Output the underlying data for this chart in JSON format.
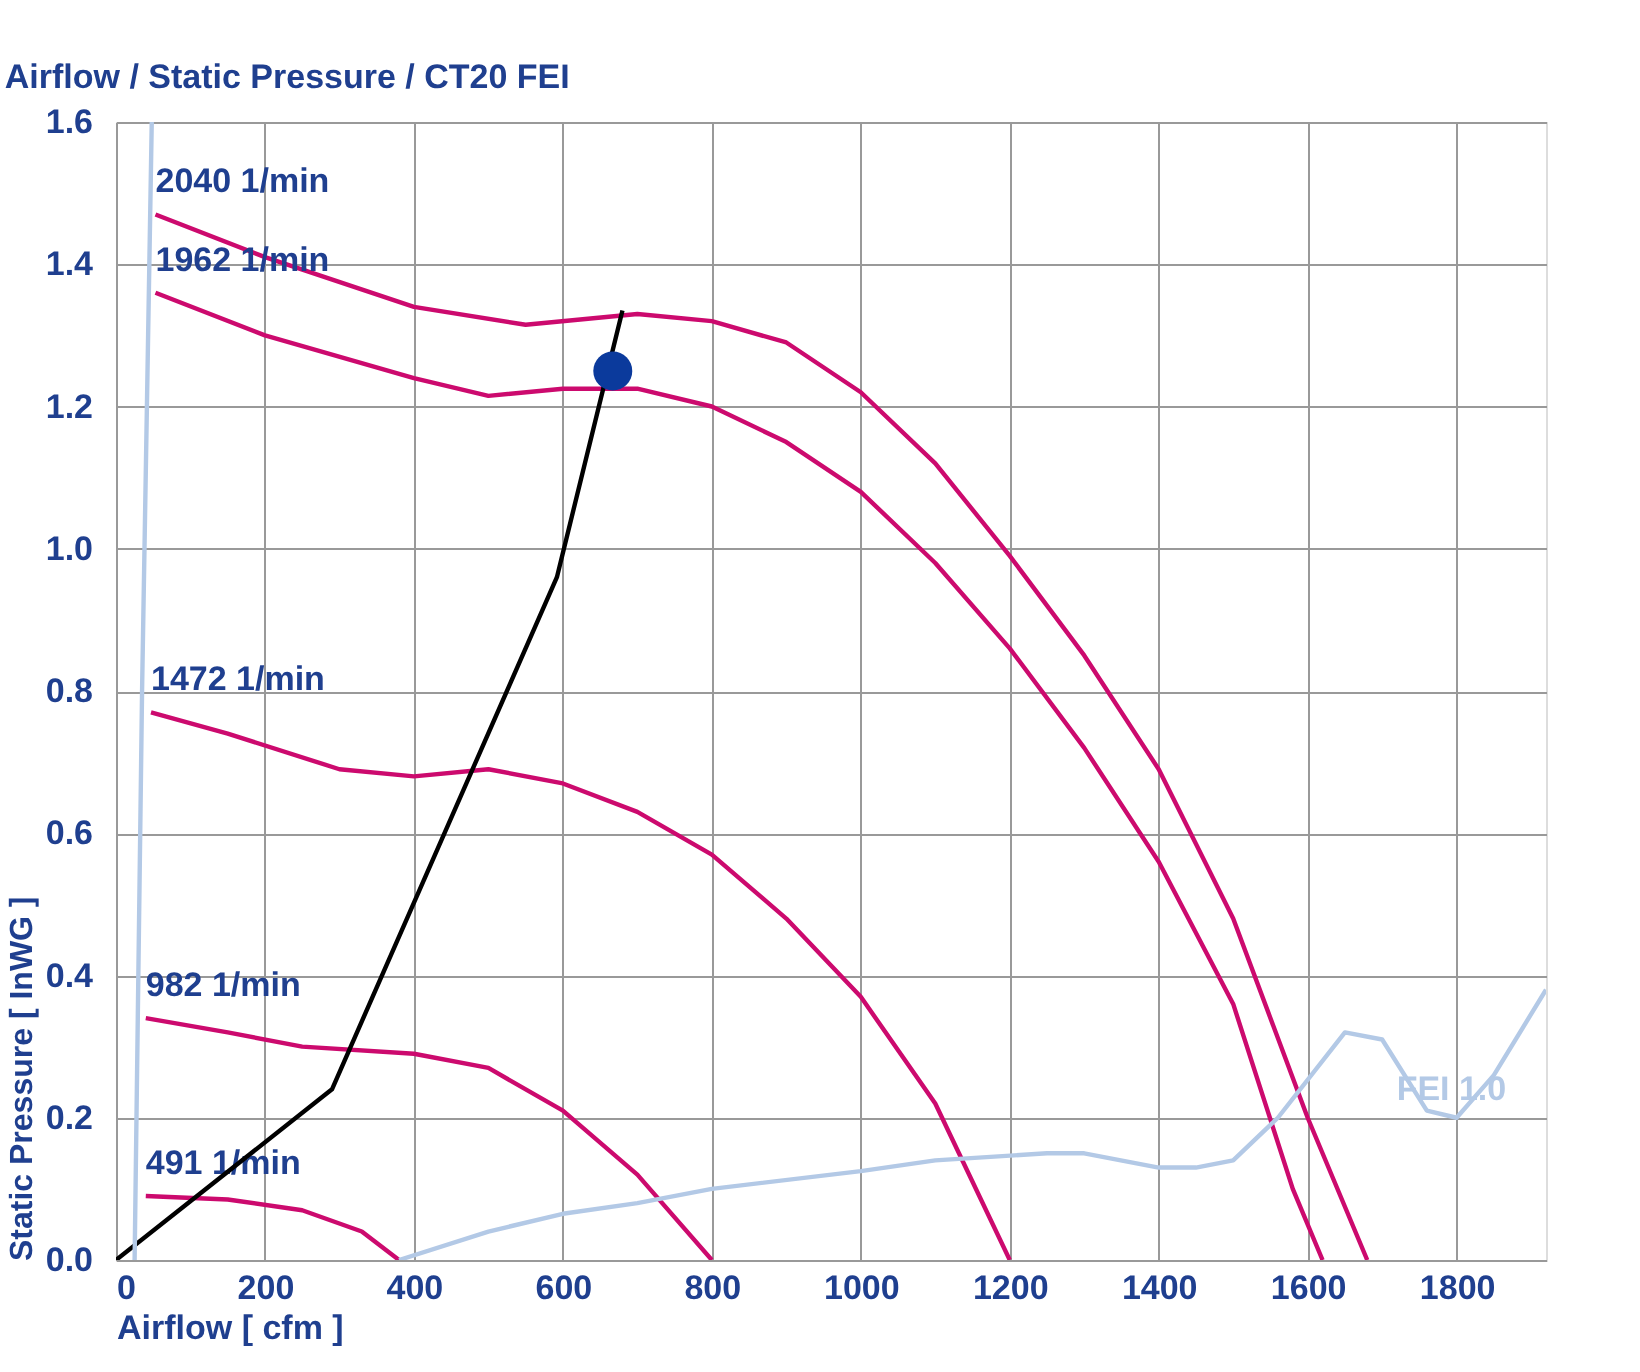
{
  "chart_data": {
    "type": "line",
    "title": "Airflow / Static Pressure / CT20 FEI",
    "xlabel": "Airflow [ cfm ]",
    "ylabel": "Static Pressure [ InWG ]",
    "xlim": [
      0,
      1920
    ],
    "ylim": [
      0,
      1.6
    ],
    "xticks": [
      0,
      200,
      400,
      600,
      800,
      1000,
      1200,
      1400,
      1600,
      1800
    ],
    "yticks": [
      {
        "value": 0,
        "label": "0.0"
      },
      0.2,
      0.4,
      0.6,
      0.8,
      {
        "value": 1,
        "label": "1.0"
      },
      1.2,
      1.4,
      1.6
    ],
    "grid": true,
    "series": [
      {
        "name": "2040 1/min",
        "color": "#cc0a6e",
        "x": [
          53,
          200,
          400,
          550,
          700,
          800,
          900,
          1000,
          1100,
          1200,
          1300,
          1400,
          1500,
          1600,
          1680
        ],
        "values": [
          1.47,
          1.41,
          1.34,
          1.315,
          1.33,
          1.32,
          1.29,
          1.22,
          1.12,
          0.99,
          0.85,
          0.69,
          0.48,
          0.2,
          0
        ]
      },
      {
        "name": "1962 1/min",
        "color": "#cc0a6e",
        "x": [
          53,
          200,
          400,
          500,
          600,
          700,
          800,
          900,
          1000,
          1100,
          1200,
          1300,
          1400,
          1500,
          1580,
          1620
        ],
        "values": [
          1.36,
          1.3,
          1.24,
          1.215,
          1.225,
          1.225,
          1.2,
          1.15,
          1.08,
          0.98,
          0.86,
          0.72,
          0.56,
          0.36,
          0.1,
          0
        ]
      },
      {
        "name": "1472 1/min",
        "color": "#cc0a6e",
        "x": [
          47,
          150,
          300,
          400,
          500,
          600,
          700,
          800,
          900,
          1000,
          1100,
          1200
        ],
        "values": [
          0.77,
          0.74,
          0.69,
          0.68,
          0.69,
          0.67,
          0.63,
          0.57,
          0.48,
          0.37,
          0.22,
          0
        ]
      },
      {
        "name": "982 1/min",
        "color": "#cc0a6e",
        "x": [
          40,
          150,
          250,
          400,
          500,
          600,
          700,
          800
        ],
        "values": [
          0.34,
          0.32,
          0.3,
          0.29,
          0.27,
          0.21,
          0.12,
          0
        ]
      },
      {
        "name": "491 1/min",
        "color": "#cc0a6e",
        "x": [
          40,
          150,
          250,
          330,
          380
        ],
        "values": [
          0.09,
          0.085,
          0.07,
          0.04,
          0
        ]
      },
      {
        "color": "#000000",
        "x": [
          0,
          290,
          592,
          680
        ],
        "values": [
          0,
          0.24,
          0.96,
          1.335
        ]
      },
      {
        "color": "#b3c9e6",
        "x": [
          25,
          35,
          48
        ],
        "values": [
          0,
          0.8,
          1.6
        ]
      },
      {
        "color": "#b3c9e6",
        "x": [
          380,
          500,
          600,
          700,
          800,
          1000,
          1100,
          1250,
          1300,
          1400,
          1450,
          1500,
          1560,
          1650,
          1700,
          1760,
          1800,
          1850,
          1920
        ],
        "values": [
          0,
          0.04,
          0.065,
          0.08,
          0.1,
          0.125,
          0.14,
          0.15,
          0.15,
          0.13,
          0.13,
          0.14,
          0.2,
          0.32,
          0.31,
          0.21,
          0.2,
          0.26,
          0.38
        ]
      },
      {
        "type": "scatter",
        "marker": "circle",
        "color": "#0b3a9c",
        "x": [
          667
        ],
        "values": [
          1.25
        ]
      }
    ],
    "annotations": [
      {
        "text": "FEI 1.0",
        "x": 1800,
        "y": 0.2
      }
    ]
  }
}
